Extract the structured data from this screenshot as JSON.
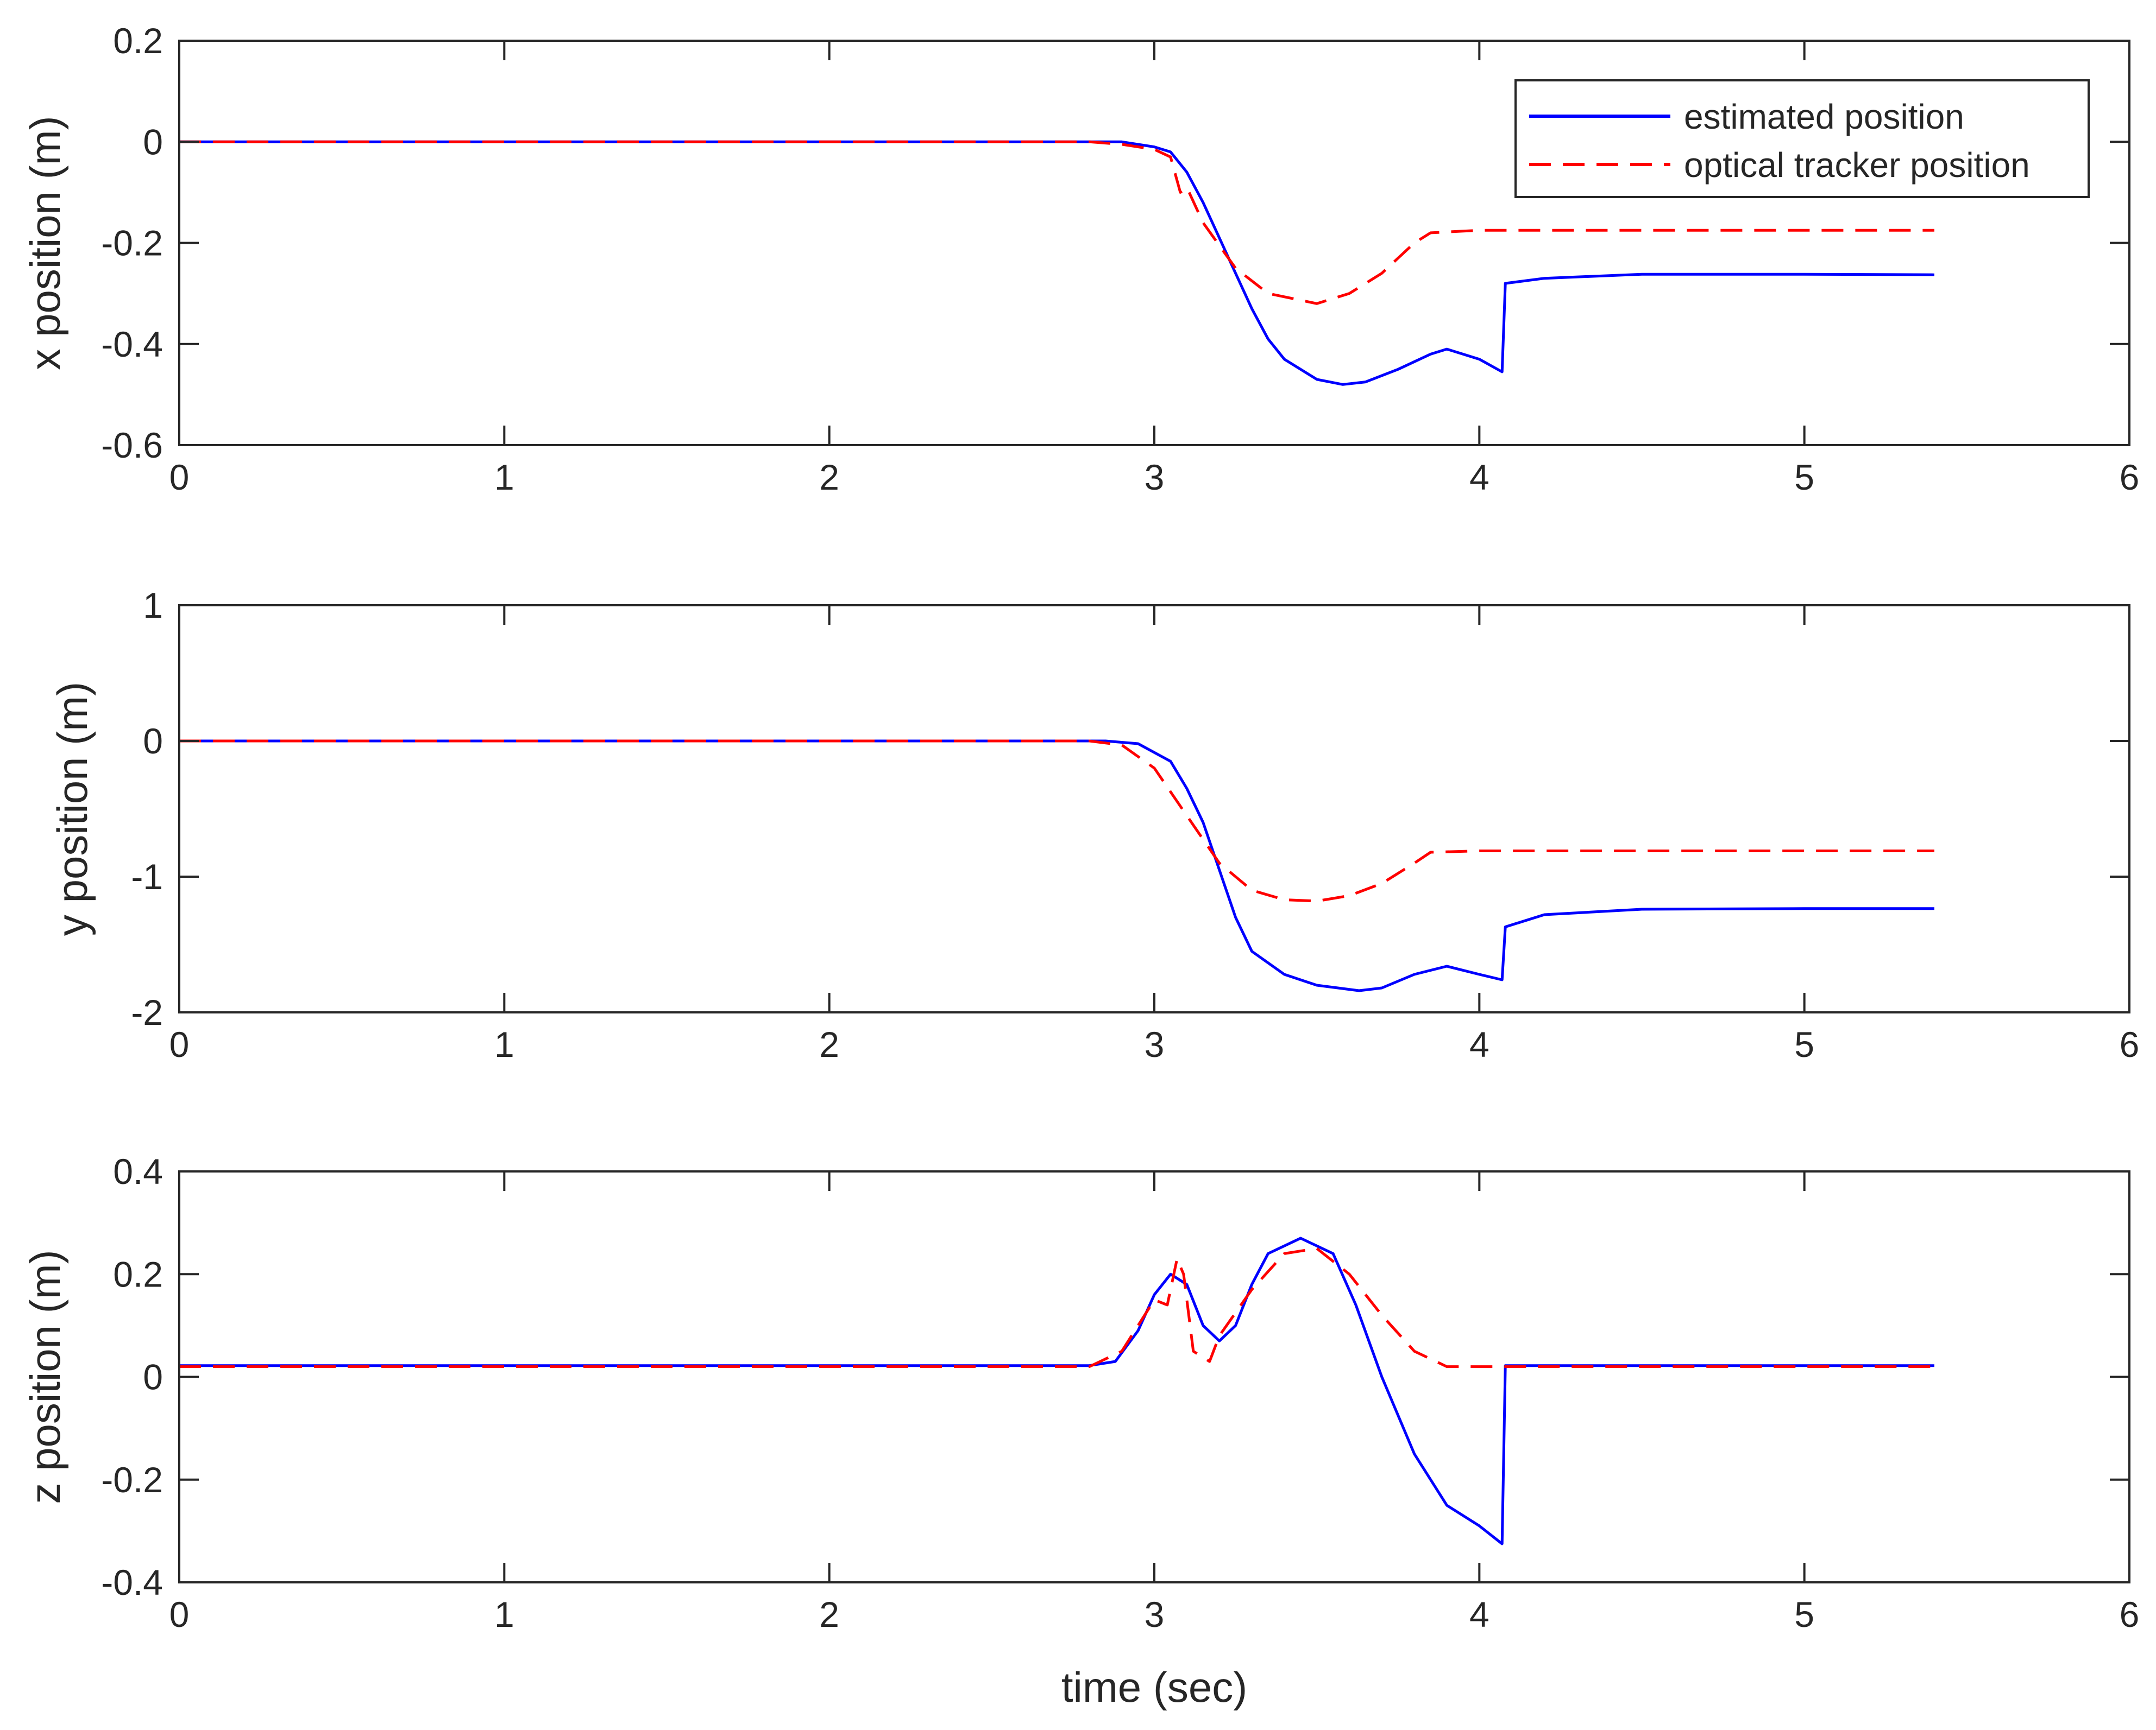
{
  "chart_data": [
    {
      "type": "line",
      "xlabel": "",
      "ylabel": "x position (m)",
      "xlim": [
        0,
        6
      ],
      "ylim": [
        -0.6,
        0.2
      ],
      "xticks": [
        "0",
        "1",
        "2",
        "3",
        "4",
        "5",
        "6"
      ],
      "yticks": [
        "-0.6",
        "-0.4",
        "-0.2",
        "0",
        "0.2"
      ],
      "grid": false,
      "legend": {
        "position": "top-right",
        "entries": [
          "estimated position",
          "optical tracker position"
        ]
      },
      "series": [
        {
          "name": "estimated position",
          "color": "#0000ff",
          "style": "solid",
          "points": [
            [
              0,
              0
            ],
            [
              2.8,
              0
            ],
            [
              2.9,
              0
            ],
            [
              3.0,
              -0.01
            ],
            [
              3.05,
              -0.02
            ],
            [
              3.1,
              -0.06
            ],
            [
              3.15,
              -0.12
            ],
            [
              3.2,
              -0.19
            ],
            [
              3.25,
              -0.26
            ],
            [
              3.3,
              -0.33
            ],
            [
              3.35,
              -0.39
            ],
            [
              3.4,
              -0.43
            ],
            [
              3.5,
              -0.47
            ],
            [
              3.58,
              -0.48
            ],
            [
              3.65,
              -0.475
            ],
            [
              3.75,
              -0.45
            ],
            [
              3.85,
              -0.42
            ],
            [
              3.9,
              -0.41
            ],
            [
              4.0,
              -0.43
            ],
            [
              4.07,
              -0.455
            ],
            [
              4.08,
              -0.28
            ],
            [
              4.2,
              -0.27
            ],
            [
              4.5,
              -0.262
            ],
            [
              5.0,
              -0.262
            ],
            [
              5.4,
              -0.263
            ]
          ]
        },
        {
          "name": "optical tracker position",
          "color": "#ff0000",
          "style": "dashed",
          "points": [
            [
              0,
              0
            ],
            [
              2.8,
              0
            ],
            [
              2.9,
              -0.005
            ],
            [
              3.0,
              -0.015
            ],
            [
              3.05,
              -0.03
            ],
            [
              3.08,
              -0.1
            ],
            [
              3.1,
              -0.09
            ],
            [
              3.15,
              -0.16
            ],
            [
              3.25,
              -0.25
            ],
            [
              3.35,
              -0.3
            ],
            [
              3.5,
              -0.32
            ],
            [
              3.6,
              -0.3
            ],
            [
              3.7,
              -0.26
            ],
            [
              3.8,
              -0.2
            ],
            [
              3.85,
              -0.18
            ],
            [
              4.0,
              -0.175
            ],
            [
              4.5,
              -0.175
            ],
            [
              5.0,
              -0.175
            ],
            [
              5.4,
              -0.175
            ]
          ]
        }
      ]
    },
    {
      "type": "line",
      "xlabel": "",
      "ylabel": "y position (m)",
      "xlim": [
        0,
        6
      ],
      "ylim": [
        -2,
        1
      ],
      "xticks": [
        "0",
        "1",
        "2",
        "3",
        "4",
        "5",
        "6"
      ],
      "yticks": [
        "-2",
        "-1",
        "0",
        "1"
      ],
      "grid": false,
      "series": [
        {
          "name": "estimated position",
          "color": "#0000ff",
          "style": "solid",
          "points": [
            [
              0,
              0
            ],
            [
              2.85,
              0
            ],
            [
              2.95,
              -0.02
            ],
            [
              3.05,
              -0.15
            ],
            [
              3.1,
              -0.35
            ],
            [
              3.15,
              -0.6
            ],
            [
              3.2,
              -0.95
            ],
            [
              3.25,
              -1.3
            ],
            [
              3.3,
              -1.55
            ],
            [
              3.4,
              -1.72
            ],
            [
              3.5,
              -1.8
            ],
            [
              3.63,
              -1.84
            ],
            [
              3.7,
              -1.82
            ],
            [
              3.8,
              -1.72
            ],
            [
              3.9,
              -1.66
            ],
            [
              4.0,
              -1.72
            ],
            [
              4.07,
              -1.76
            ],
            [
              4.08,
              -1.37
            ],
            [
              4.2,
              -1.28
            ],
            [
              4.5,
              -1.24
            ],
            [
              5.0,
              -1.235
            ],
            [
              5.4,
              -1.235
            ]
          ]
        },
        {
          "name": "optical tracker position",
          "color": "#ff0000",
          "style": "dashed",
          "points": [
            [
              0,
              0
            ],
            [
              2.8,
              0
            ],
            [
              2.9,
              -0.03
            ],
            [
              3.0,
              -0.2
            ],
            [
              3.1,
              -0.55
            ],
            [
              3.2,
              -0.9
            ],
            [
              3.3,
              -1.1
            ],
            [
              3.4,
              -1.17
            ],
            [
              3.5,
              -1.18
            ],
            [
              3.6,
              -1.14
            ],
            [
              3.7,
              -1.05
            ],
            [
              3.8,
              -0.9
            ],
            [
              3.85,
              -0.82
            ],
            [
              4.0,
              -0.81
            ],
            [
              4.5,
              -0.81
            ],
            [
              5.0,
              -0.81
            ],
            [
              5.4,
              -0.81
            ]
          ]
        }
      ]
    },
    {
      "type": "line",
      "xlabel": "time (sec)",
      "ylabel": "z position (m)",
      "xlim": [
        0,
        6
      ],
      "ylim": [
        -0.4,
        0.4
      ],
      "xticks": [
        "0",
        "1",
        "2",
        "3",
        "4",
        "5",
        "6"
      ],
      "yticks": [
        "-0.4",
        "-0.2",
        "0",
        "0.2",
        "0.4"
      ],
      "grid": false,
      "series": [
        {
          "name": "estimated position",
          "color": "#0000ff",
          "style": "solid",
          "points": [
            [
              0,
              0.022
            ],
            [
              2.8,
              0.022
            ],
            [
              2.88,
              0.03
            ],
            [
              2.95,
              0.09
            ],
            [
              3.0,
              0.16
            ],
            [
              3.05,
              0.2
            ],
            [
              3.1,
              0.18
            ],
            [
              3.15,
              0.1
            ],
            [
              3.2,
              0.07
            ],
            [
              3.25,
              0.1
            ],
            [
              3.3,
              0.18
            ],
            [
              3.35,
              0.24
            ],
            [
              3.45,
              0.27
            ],
            [
              3.55,
              0.24
            ],
            [
              3.62,
              0.14
            ],
            [
              3.7,
              0.0
            ],
            [
              3.8,
              -0.15
            ],
            [
              3.9,
              -0.25
            ],
            [
              4.0,
              -0.29
            ],
            [
              4.07,
              -0.325
            ],
            [
              4.08,
              0.022
            ],
            [
              4.5,
              0.022
            ],
            [
              5.0,
              0.022
            ],
            [
              5.4,
              0.022
            ]
          ]
        },
        {
          "name": "optical tracker position",
          "color": "#ff0000",
          "style": "dashed",
          "points": [
            [
              0,
              0.02
            ],
            [
              2.8,
              0.02
            ],
            [
              2.9,
              0.05
            ],
            [
              3.0,
              0.15
            ],
            [
              3.04,
              0.14
            ],
            [
              3.07,
              0.23
            ],
            [
              3.09,
              0.2
            ],
            [
              3.12,
              0.05
            ],
            [
              3.17,
              0.03
            ],
            [
              3.2,
              0.08
            ],
            [
              3.3,
              0.17
            ],
            [
              3.4,
              0.24
            ],
            [
              3.5,
              0.25
            ],
            [
              3.6,
              0.2
            ],
            [
              3.7,
              0.12
            ],
            [
              3.8,
              0.05
            ],
            [
              3.9,
              0.02
            ],
            [
              4.0,
              0.02
            ],
            [
              4.5,
              0.02
            ],
            [
              5.0,
              0.02
            ],
            [
              5.4,
              0.02
            ]
          ]
        }
      ]
    }
  ]
}
